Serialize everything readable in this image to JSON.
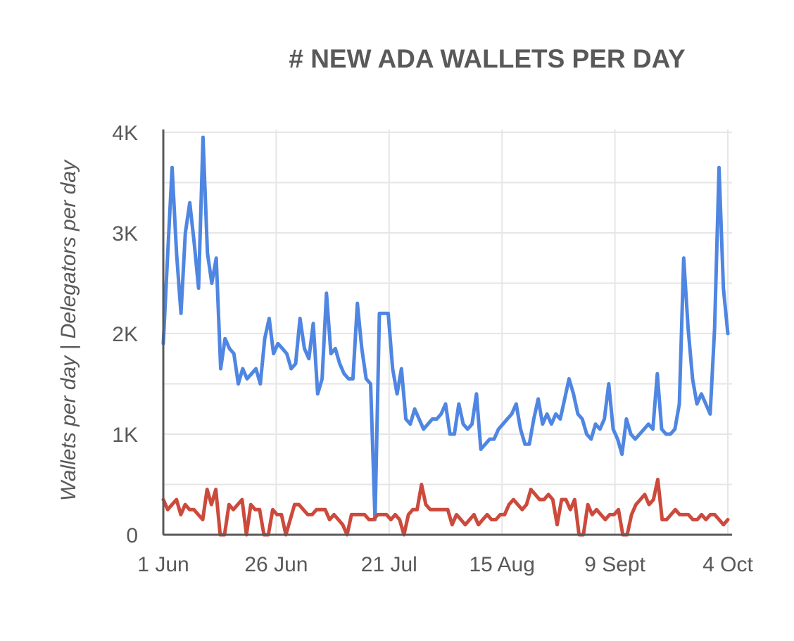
{
  "chart_data": {
    "type": "line",
    "title": "# NEW ADA WALLETS PER DAY",
    "xlabel": "",
    "ylabel": "Wallets per day | Delegators per day",
    "x_start": "2020-06-01",
    "x_end": "2020-10-04",
    "x_ticks": [
      {
        "label": "1 Jun",
        "date": "2020-06-01"
      },
      {
        "label": "26 Jun",
        "date": "2020-06-26"
      },
      {
        "label": "21 Jul",
        "date": "2020-07-21"
      },
      {
        "label": "15 Aug",
        "date": "2020-08-15"
      },
      {
        "label": "9 Sept",
        "date": "2020-09-09"
      },
      {
        "label": "4 Oct",
        "date": "2020-10-04"
      }
    ],
    "y_ticks": [
      {
        "label": "0",
        "value": 0
      },
      {
        "label": "1K",
        "value": 1000
      },
      {
        "label": "2K",
        "value": 2000
      },
      {
        "label": "3K",
        "value": 3000
      },
      {
        "label": "4K",
        "value": 4000
      }
    ],
    "ylim": [
      0,
      4000
    ],
    "grid": true,
    "series": [
      {
        "color": "#4f86e2",
        "values": [
          1900,
          2800,
          3650,
          2800,
          2200,
          3000,
          3300,
          2900,
          2450,
          3950,
          2800,
          2500,
          2750,
          1650,
          1950,
          1850,
          1800,
          1500,
          1650,
          1550,
          1600,
          1650,
          1500,
          1950,
          2150,
          1800,
          1900,
          1850,
          1800,
          1650,
          1700,
          2150,
          1850,
          1750,
          2100,
          1400,
          1550,
          2400,
          1800,
          1850,
          1700,
          1600,
          1550,
          1550,
          2300,
          1850,
          1550,
          1500,
          150,
          2200,
          2200,
          2200,
          1650,
          1400,
          1650,
          1150,
          1100,
          1250,
          1150,
          1050,
          1100,
          1150,
          1150,
          1200,
          1300,
          1000,
          1000,
          1300,
          1100,
          1050,
          1100,
          1400,
          850,
          900,
          950,
          950,
          1050,
          1100,
          1150,
          1200,
          1300,
          1050,
          900,
          900,
          1150,
          1350,
          1100,
          1200,
          1100,
          1200,
          1150,
          1350,
          1550,
          1400,
          1200,
          1150,
          1000,
          950,
          1100,
          1050,
          1150,
          1500,
          1050,
          950,
          800,
          1150,
          1000,
          950,
          1000,
          1050,
          1100,
          1050,
          1600,
          1050,
          1000,
          1000,
          1050,
          1300,
          2750,
          2050,
          1550,
          1300,
          1400,
          1300,
          1200,
          2050,
          3650,
          2450,
          2000
        ]
      },
      {
        "color": "#cc4a3c",
        "values": [
          350,
          250,
          300,
          350,
          200,
          300,
          250,
          250,
          200,
          150,
          450,
          300,
          450,
          0,
          0,
          300,
          250,
          300,
          350,
          0,
          300,
          250,
          250,
          0,
          0,
          250,
          200,
          200,
          0,
          150,
          300,
          300,
          250,
          200,
          200,
          250,
          250,
          250,
          150,
          200,
          150,
          100,
          0,
          200,
          200,
          200,
          200,
          150,
          150,
          200,
          200,
          200,
          150,
          200,
          150,
          0,
          200,
          250,
          250,
          500,
          300,
          250,
          250,
          250,
          250,
          250,
          100,
          200,
          150,
          100,
          150,
          200,
          100,
          150,
          200,
          150,
          150,
          200,
          200,
          300,
          350,
          300,
          250,
          300,
          450,
          400,
          350,
          350,
          400,
          350,
          100,
          350,
          350,
          250,
          350,
          0,
          0,
          300,
          200,
          250,
          200,
          150,
          200,
          200,
          250,
          0,
          0,
          200,
          300,
          350,
          400,
          300,
          350,
          550,
          150,
          150,
          200,
          250,
          200,
          200,
          200,
          150,
          150,
          200,
          150,
          200,
          200,
          150,
          100,
          150
        ]
      }
    ]
  }
}
